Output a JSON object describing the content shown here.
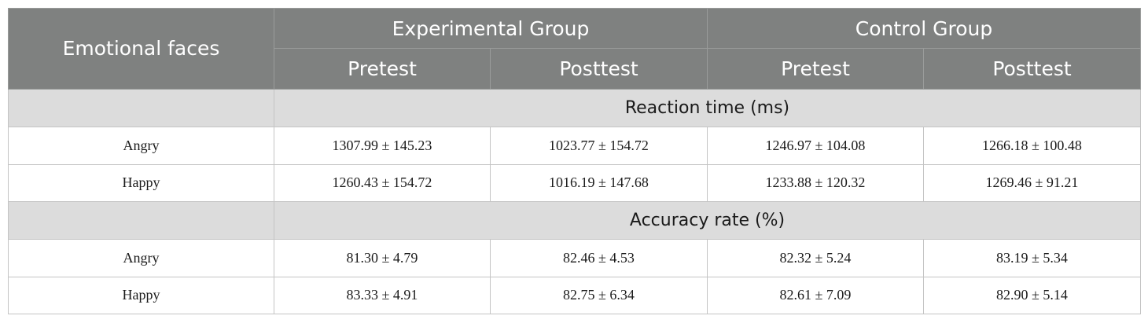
{
  "header": {
    "row_label": "Emotional faces",
    "groups": [
      "Experimental Group",
      "Control Group"
    ],
    "subheaders": [
      "Pretest",
      "Posttest",
      "Pretest",
      "Posttest"
    ]
  },
  "sections": [
    {
      "title": "Reaction time (ms)",
      "rows": [
        {
          "label": "Angry",
          "values": [
            "1307.99 ± 145.23",
            "1023.77 ± 154.72",
            "1246.97 ± 104.08",
            "1266.18 ± 100.48"
          ]
        },
        {
          "label": "Happy",
          "values": [
            "1260.43 ± 154.72",
            "1016.19 ± 147.68",
            "1233.88 ± 120.32",
            "1269.46 ± 91.21"
          ]
        }
      ]
    },
    {
      "title": "Accuracy rate (%)",
      "rows": [
        {
          "label": "Angry",
          "values": [
            "81.30 ± 4.79",
            "82.46 ± 4.53",
            "82.32 ± 5.24",
            "83.19 ± 5.34"
          ]
        },
        {
          "label": "Happy",
          "values": [
            "83.33 ± 4.91",
            "82.75 ± 6.34",
            "82.61 ± 7.09",
            "82.90 ± 5.14"
          ]
        }
      ]
    }
  ]
}
